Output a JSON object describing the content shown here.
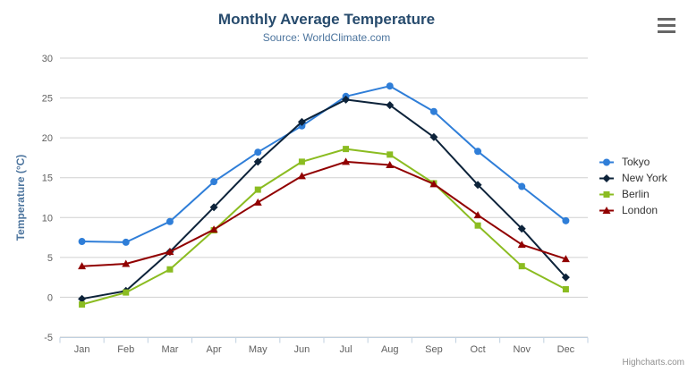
{
  "title": "Monthly Average Temperature",
  "subtitle": "Source: WorldClimate.com",
  "credits_label": "Highcharts.com",
  "export_menu": {
    "icon": "hamburger-icon"
  },
  "colors": {
    "background": "#ffffff",
    "title_text": "#274b6d",
    "subtitle_text": "#4d759e",
    "yaxis_title_text": "#4d759e",
    "axis_label_text": "#606060",
    "gridline": "#d0d0d0",
    "axis_line": "#c0d0e0",
    "legend_text": "#333333",
    "credits_text": "#909090",
    "export_icon": "#666666"
  },
  "chart_data": {
    "type": "line",
    "title": "Monthly Average Temperature",
    "subtitle": "Source: WorldClimate.com",
    "xlabel": "",
    "ylabel": "Temperature (°C)",
    "categories": [
      "Jan",
      "Feb",
      "Mar",
      "Apr",
      "May",
      "Jun",
      "Jul",
      "Aug",
      "Sep",
      "Oct",
      "Nov",
      "Dec"
    ],
    "series": [
      {
        "name": "Tokyo",
        "color": "#2f7ed8",
        "marker": "circle",
        "values": [
          7.0,
          6.9,
          9.5,
          14.5,
          18.2,
          21.5,
          25.2,
          26.5,
          23.3,
          18.3,
          13.9,
          9.6
        ]
      },
      {
        "name": "New York",
        "color": "#0d233a",
        "marker": "diamond",
        "values": [
          -0.2,
          0.8,
          5.7,
          11.3,
          17.0,
          22.0,
          24.8,
          24.1,
          20.1,
          14.1,
          8.6,
          2.5
        ]
      },
      {
        "name": "Berlin",
        "color": "#8bbc21",
        "marker": "square",
        "values": [
          -0.9,
          0.6,
          3.5,
          8.4,
          13.5,
          17.0,
          18.6,
          17.9,
          14.3,
          9.0,
          3.9,
          1.0
        ]
      },
      {
        "name": "London",
        "color": "#910000",
        "marker": "triangle",
        "values": [
          3.9,
          4.2,
          5.7,
          8.5,
          11.9,
          15.2,
          17.0,
          16.6,
          14.2,
          10.3,
          6.6,
          4.8
        ]
      }
    ],
    "ylim": [
      -5,
      30
    ],
    "yticks": [
      -5,
      0,
      5,
      10,
      15,
      20,
      25,
      30
    ],
    "grid": true,
    "legend_position": "right"
  }
}
